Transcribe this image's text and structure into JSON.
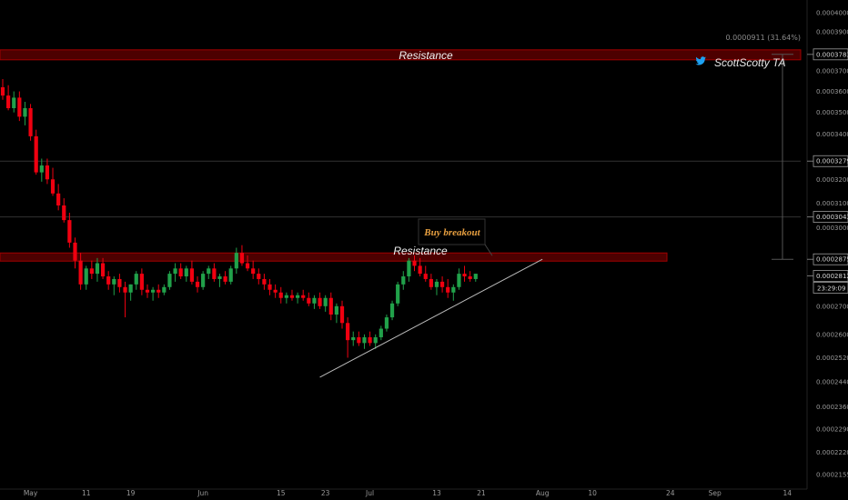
{
  "chart_data": {
    "type": "candlestick",
    "title": "",
    "y_scale": "log",
    "ylim": [
      0.0002155,
      0.0004
    ],
    "y_tick_labels": [
      "0.0004000",
      "0.0003900",
      "0.0003783",
      "0.0003700",
      "0.0003600",
      "0.0003500",
      "0.0003400",
      "0.0003279",
      "0.0003200",
      "0.0003100",
      "0.0003043",
      "0.0003000",
      "0.0002875",
      "0.0002812",
      "0.0002700",
      "0.0002600",
      "0.0002520",
      "0.0002440",
      "0.0002360",
      "0.0002290",
      "0.0002220",
      "0.0002155"
    ],
    "y_ticks": [
      0.0004,
      0.00039,
      0.00037,
      0.00036,
      0.00035,
      0.00034,
      0.00032,
      0.00031,
      0.0003,
      0.00027,
      0.00026,
      0.000252,
      0.000244,
      0.000236,
      0.000229,
      0.000222,
      0.0002155
    ],
    "x_ticks": [
      {
        "date": "2023-05-01",
        "label": "May"
      },
      {
        "date": "2023-05-11",
        "label": "11"
      },
      {
        "date": "2023-05-19",
        "label": "19"
      },
      {
        "date": "2023-06-01",
        "label": "Jun"
      },
      {
        "date": "2023-06-15",
        "label": "15"
      },
      {
        "date": "2023-06-23",
        "label": "23"
      },
      {
        "date": "2023-07-01",
        "label": "Jul"
      },
      {
        "date": "2023-07-13",
        "label": "13"
      },
      {
        "date": "2023-07-21",
        "label": "21"
      },
      {
        "date": "2023-08-01",
        "label": "Aug"
      },
      {
        "date": "2023-08-10",
        "label": "10"
      },
      {
        "date": "2023-08-24",
        "label": "24"
      },
      {
        "date": "2023-09-01",
        "label": "Sep"
      },
      {
        "date": "2023-09-14",
        "label": "14"
      }
    ],
    "x_range": [
      "2023-04-26",
      "2023-09-18"
    ],
    "candle_start": "2023-04-26",
    "candles": [
      [
        0.000362,
        0.000366,
        0.000356,
        0.000358
      ],
      [
        0.000358,
        0.000363,
        0.000351,
        0.000352
      ],
      [
        0.000352,
        0.00036,
        0.00035,
        0.000357
      ],
      [
        0.000357,
        0.00036,
        0.000346,
        0.000348
      ],
      [
        0.000348,
        0.000355,
        0.000344,
        0.000352
      ],
      [
        0.000352,
        0.000354,
        0.000337,
        0.000339
      ],
      [
        0.000339,
        0.000342,
        0.000322,
        0.000323
      ],
      [
        0.000323,
        0.000329,
        0.000319,
        0.000326
      ],
      [
        0.000326,
        0.000329,
        0.000318,
        0.00032
      ],
      [
        0.00032,
        0.000325,
        0.000313,
        0.000314
      ],
      [
        0.000314,
        0.000318,
        0.000307,
        0.000309
      ],
      [
        0.000309,
        0.000312,
        0.000302,
        0.000303
      ],
      [
        0.000303,
        0.000306,
        0.000292,
        0.000294
      ],
      [
        0.000294,
        0.000296,
        0.000284,
        0.000287
      ],
      [
        0.000287,
        0.00029,
        0.000276,
        0.000278
      ],
      [
        0.000278,
        0.000285,
        0.000276,
        0.000284
      ],
      [
        0.000284,
        0.000287,
        0.00028,
        0.000282
      ],
      [
        0.000282,
        0.000288,
        0.000279,
        0.000286
      ],
      [
        0.000286,
        0.000288,
        0.00028,
        0.000281
      ],
      [
        0.000281,
        0.000283,
        0.000276,
        0.000278
      ],
      [
        0.000278,
        0.000281,
        0.000274,
        0.00028
      ],
      [
        0.00028,
        0.000282,
        0.000275,
        0.000277
      ],
      [
        0.000277,
        0.000279,
        0.000266,
        0.000275
      ],
      [
        0.000275,
        0.000278,
        0.000272,
        0.000278
      ],
      [
        0.000278,
        0.000283,
        0.000276,
        0.000282
      ],
      [
        0.000282,
        0.000284,
        0.000274,
        0.000276
      ],
      [
        0.000276,
        0.000278,
        0.000273,
        0.000275
      ],
      [
        0.000275,
        0.000277,
        0.000272,
        0.000276
      ],
      [
        0.000276,
        0.000278,
        0.000273,
        0.000275
      ],
      [
        0.000275,
        0.000278,
        0.000274,
        0.000277
      ],
      [
        0.000277,
        0.000283,
        0.000276,
        0.000282
      ],
      [
        0.000282,
        0.000286,
        0.000279,
        0.000284
      ],
      [
        0.000284,
        0.000286,
        0.00028,
        0.000281
      ],
      [
        0.000281,
        0.000285,
        0.000279,
        0.000284
      ],
      [
        0.000284,
        0.000287,
        0.000278,
        0.000279
      ],
      [
        0.000279,
        0.000281,
        0.000275,
        0.000277
      ],
      [
        0.000277,
        0.000283,
        0.000276,
        0.000282
      ],
      [
        0.000282,
        0.000285,
        0.00028,
        0.000284
      ],
      [
        0.000284,
        0.000286,
        0.000279,
        0.00028
      ],
      [
        0.00028,
        0.000282,
        0.000277,
        0.000281
      ],
      [
        0.000281,
        0.000283,
        0.000278,
        0.000279
      ],
      [
        0.000279,
        0.000285,
        0.000278,
        0.000284
      ],
      [
        0.000284,
        0.000292,
        0.000282,
        0.00029
      ],
      [
        0.00029,
        0.000293,
        0.000285,
        0.000286
      ],
      [
        0.000286,
        0.000289,
        0.000283,
        0.000284
      ],
      [
        0.000284,
        0.000287,
        0.00028,
        0.000282
      ],
      [
        0.000282,
        0.000284,
        0.000278,
        0.00028
      ],
      [
        0.00028,
        0.000282,
        0.000276,
        0.000278
      ],
      [
        0.000278,
        0.00028,
        0.000274,
        0.000276
      ],
      [
        0.000276,
        0.000278,
        0.000273,
        0.000275
      ],
      [
        0.000275,
        0.000277,
        0.000271,
        0.000273
      ],
      [
        0.000273,
        0.000275,
        0.000271,
        0.000274
      ],
      [
        0.000274,
        0.000276,
        0.000272,
        0.000273
      ],
      [
        0.000273,
        0.000275,
        0.000271,
        0.000274
      ],
      [
        0.000274,
        0.000276,
        0.000272,
        0.000273
      ],
      [
        0.000273,
        0.000275,
        0.00027,
        0.000271
      ],
      [
        0.000271,
        0.000274,
        0.000269,
        0.000273
      ],
      [
        0.000273,
        0.000275,
        0.000269,
        0.00027
      ],
      [
        0.00027,
        0.000274,
        0.000268,
        0.000273
      ],
      [
        0.000273,
        0.000275,
        0.000265,
        0.000267
      ],
      [
        0.000267,
        0.000271,
        0.000264,
        0.00027
      ],
      [
        0.00027,
        0.000272,
        0.000262,
        0.000264
      ],
      [
        0.000264,
        0.000266,
        0.000252,
        0.000258
      ],
      [
        0.000258,
        0.000261,
        0.000256,
        0.000259
      ],
      [
        0.000259,
        0.000261,
        0.000256,
        0.000257
      ],
      [
        0.000257,
        0.00026,
        0.000255,
        0.000259
      ],
      [
        0.000259,
        0.000261,
        0.000256,
        0.000257
      ],
      [
        0.000257,
        0.00026,
        0.000255,
        0.000259
      ],
      [
        0.000259,
        0.000263,
        0.000258,
        0.000262
      ],
      [
        0.000262,
        0.000267,
        0.000261,
        0.000266
      ],
      [
        0.000266,
        0.000272,
        0.000265,
        0.000271
      ],
      [
        0.000271,
        0.000279,
        0.00027,
        0.000278
      ],
      [
        0.000278,
        0.000283,
        0.000276,
        0.000281
      ],
      [
        0.000281,
        0.000288,
        0.000279,
        0.000287
      ],
      [
        0.000287,
        0.000289,
        0.000283,
        0.000285
      ],
      [
        0.000285,
        0.000288,
        0.000281,
        0.000282
      ],
      [
        0.000282,
        0.000285,
        0.000279,
        0.00028
      ],
      [
        0.00028,
        0.000282,
        0.000276,
        0.000277
      ],
      [
        0.000277,
        0.00028,
        0.000274,
        0.000279
      ],
      [
        0.000279,
        0.000281,
        0.000275,
        0.000277
      ],
      [
        0.000277,
        0.00028,
        0.000273,
        0.000275
      ],
      [
        0.000275,
        0.000278,
        0.000272,
        0.000277
      ],
      [
        0.000277,
        0.000284,
        0.000276,
        0.000282
      ],
      [
        0.000282,
        0.000285,
        0.000279,
        0.000281
      ],
      [
        0.000281,
        0.000283,
        0.000279,
        0.00028
      ],
      [
        0.00028,
        0.000282,
        0.000279,
        0.000282
      ]
    ],
    "resistance_levels": [
      0.0003783,
      0.0002875
    ],
    "annotations": {
      "resistance_top": "Resistance",
      "resistance_bottom": "Resistance",
      "callout": "Buy breakout",
      "watermark": "ScottScotty TA",
      "measure": "0.0000911 (31.64%)"
    },
    "price_badges": [
      {
        "label": "0.0003783",
        "value": 0.0003783
      },
      {
        "label": "0.0003279",
        "value": 0.0003279
      },
      {
        "label": "0.0003043",
        "value": 0.0003043
      },
      {
        "label": "0.0002875",
        "value": 0.0002875
      },
      {
        "label": "0.0002812",
        "value": 0.0002812
      }
    ],
    "countdown": "23:29:09",
    "trendline": {
      "from": {
        "date": "2023-06-22",
        "value": 0.0002455
      },
      "to": {
        "date": "2023-08-01",
        "value": 0.0002875
      }
    },
    "colors": {
      "up": "#21a14a",
      "down": "#f00010",
      "zone": "#4d0000",
      "zone_edge": "#a00000",
      "twitter": "#1da1f2"
    },
    "grid": false
  }
}
